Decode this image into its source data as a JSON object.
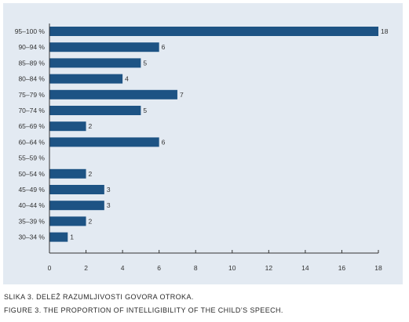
{
  "chart_data": {
    "type": "bar",
    "orientation": "horizontal",
    "categories": [
      "95–100 %",
      "90–94 %",
      "85–89 %",
      "80–84 %",
      "75–79 %",
      "70–74 %",
      "65–69 %",
      "60–64 %",
      "55–59 %",
      "50–54 %",
      "45–49 %",
      "40–44 %",
      "35–39 %",
      "30–34 %"
    ],
    "values": [
      18,
      6,
      5,
      4,
      7,
      5,
      2,
      6,
      0,
      2,
      3,
      3,
      2,
      1
    ],
    "value_labels": [
      "18",
      "6",
      "5",
      "4",
      "7",
      "5",
      "2",
      "6",
      "",
      "2",
      "3",
      "3",
      "2",
      "1"
    ],
    "xlim": [
      0,
      18
    ],
    "x_ticks": [
      0,
      2,
      4,
      6,
      8,
      10,
      12,
      14,
      16,
      18
    ],
    "x_tick_labels": [
      "0",
      "2",
      "4",
      "6",
      "8",
      "10",
      "12",
      "14",
      "16",
      "18"
    ],
    "title": "",
    "xlabel": "",
    "ylabel": "",
    "grid": false,
    "legend": "none",
    "colors": {
      "bar": "#1d5384",
      "panel": "#e3eaf2",
      "axis": "#333333",
      "text": "#333333"
    }
  },
  "captions": {
    "slovene": "SLIKA 3. DELEŽ RAZUMLJIVOSTI GOVORA OTROKA.",
    "english": "FIGURE 3. THE PROPORTION OF INTELLIGIBILITY OF THE CHILD’S SPEECH."
  }
}
